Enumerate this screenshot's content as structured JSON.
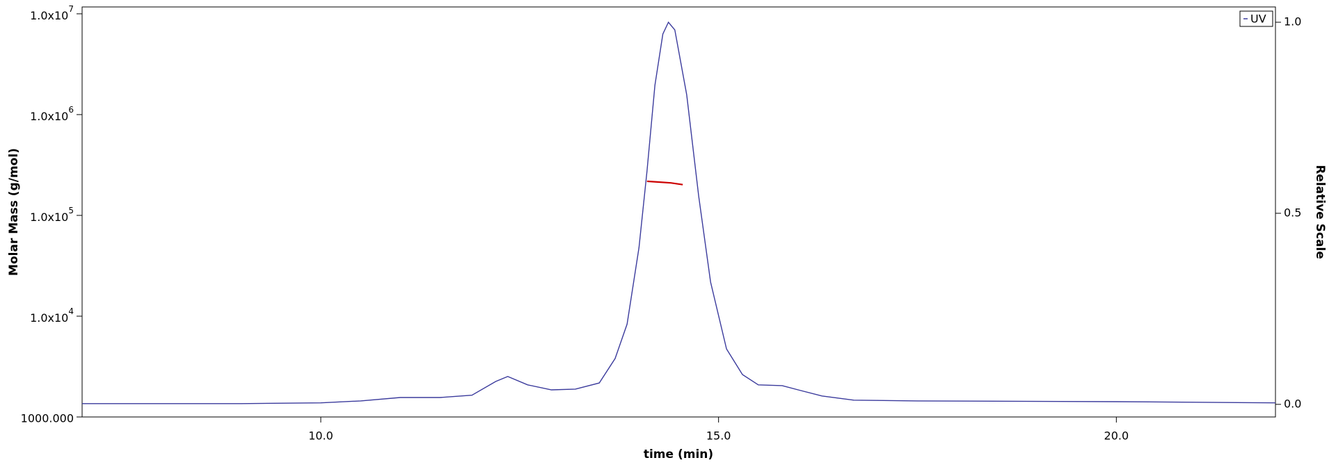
{
  "chart_data": {
    "type": "line",
    "xlabel": "time (min)",
    "ylabel": "Molar Mass (g/mol)",
    "y2label": "Relative Scale",
    "xlim": [
      7,
      22
    ],
    "xticks": [
      {
        "value": 10,
        "label": "10.0"
      },
      {
        "value": 15,
        "label": "15.0"
      },
      {
        "value": 20,
        "label": "20.0"
      }
    ],
    "ylim": [
      1000,
      11700000
    ],
    "yscale": "log",
    "yticks": [
      {
        "value": 1000,
        "label": "1000.000"
      },
      {
        "value": 10000,
        "label": "1.0x10",
        "power": "4"
      },
      {
        "value": 100000,
        "label": "1.0x10",
        "power": "5"
      },
      {
        "value": 1000000,
        "label": "1.0x10",
        "power": "6"
      },
      {
        "value": 10000000,
        "label": "1.0x10",
        "power": "7"
      }
    ],
    "y2lim": [
      -0.033,
      1.04
    ],
    "y2ticks": [
      {
        "value": 0,
        "label": "0.0"
      },
      {
        "value": 0.5,
        "label": "0.5"
      },
      {
        "value": 1,
        "label": "1.0"
      }
    ],
    "legend": "upper right",
    "series": [
      {
        "name": "UV",
        "color": "#3a3a9c",
        "axis": "y2",
        "x": [
          7.0,
          9.0,
          10.0,
          10.5,
          11.0,
          11.5,
          11.9,
          12.2,
          12.35,
          12.6,
          12.9,
          13.2,
          13.5,
          13.7,
          13.85,
          14.0,
          14.1,
          14.2,
          14.3,
          14.37,
          14.45,
          14.6,
          14.75,
          14.9,
          15.1,
          15.3,
          15.5,
          15.8,
          16.0,
          16.3,
          16.7,
          17.5,
          20.0,
          22.0
        ],
        "values": [
          0.002,
          0.002,
          0.004,
          0.009,
          0.018,
          0.018,
          0.024,
          0.06,
          0.073,
          0.051,
          0.038,
          0.04,
          0.056,
          0.12,
          0.21,
          0.41,
          0.61,
          0.835,
          0.969,
          1.0,
          0.98,
          0.81,
          0.545,
          0.32,
          0.145,
          0.078,
          0.051,
          0.049,
          0.038,
          0.022,
          0.011,
          0.009,
          0.007,
          0.004
        ]
      },
      {
        "color": "#cc0000",
        "x": [
          14.1,
          14.25,
          14.4,
          14.55
        ],
        "values": [
          218000,
          214000,
          210000,
          202000
        ]
      }
    ]
  }
}
